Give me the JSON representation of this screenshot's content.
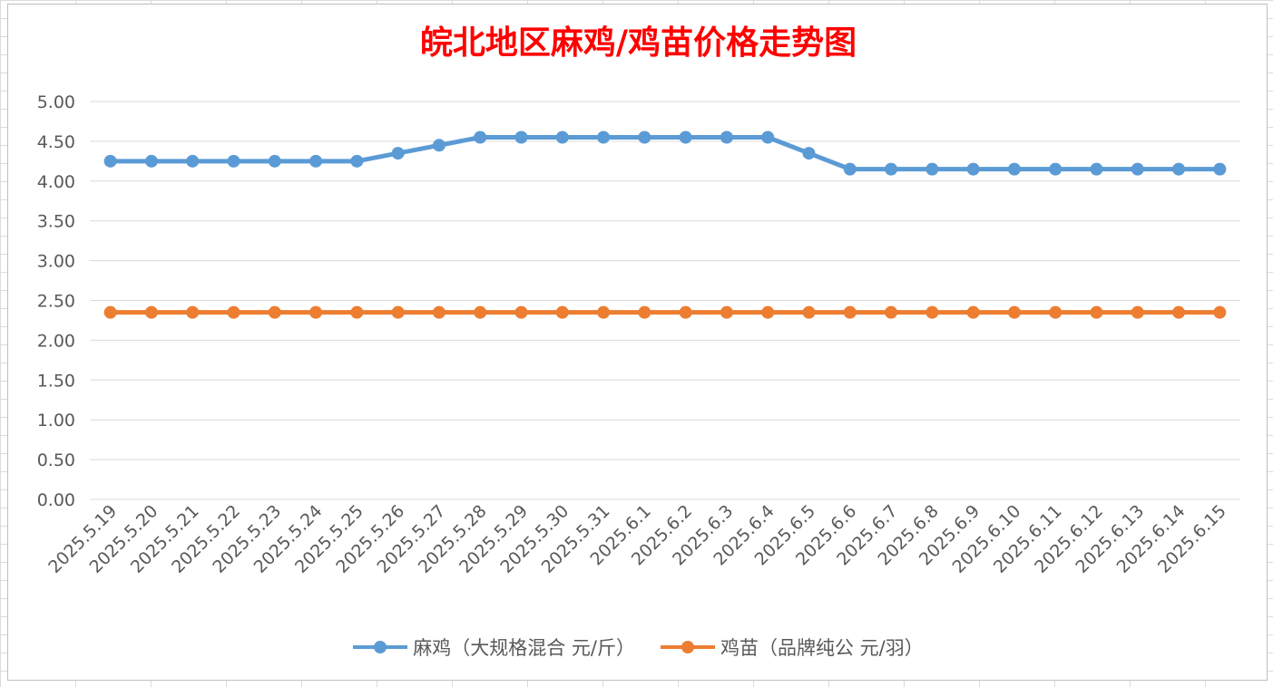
{
  "chart_data": {
    "type": "line",
    "title": "皖北地区麻鸡/鸡苗价格走势图",
    "xlabel": "",
    "ylabel": "",
    "ylim": [
      0,
      5
    ],
    "ystep": 0.5,
    "y_tick_labels": [
      "0.00",
      "0.50",
      "1.00",
      "1.50",
      "2.00",
      "2.50",
      "3.00",
      "3.50",
      "4.00",
      "4.50",
      "5.00"
    ],
    "grid": true,
    "legend_position": "bottom",
    "categories": [
      "2025.5.19",
      "2025.5.20",
      "2025.5.21",
      "2025.5.22",
      "2025.5.23",
      "2025.5.24",
      "2025.5.25",
      "2025.5.26",
      "2025.5.27",
      "2025.5.28",
      "2025.5.29",
      "2025.5.30",
      "2025.5.31",
      "2025.6.1",
      "2025.6.2",
      "2025.6.3",
      "2025.6.4",
      "2025.6.5",
      "2025.6.6",
      "2025.6.7",
      "2025.6.8",
      "2025.6.9",
      "2025.6.10",
      "2025.6.11",
      "2025.6.12",
      "2025.6.13",
      "2025.6.14",
      "2025.6.15"
    ],
    "series": [
      {
        "name": "麻鸡（大规格混合 元/斤）",
        "color": "#5b9bd5",
        "values": [
          4.25,
          4.25,
          4.25,
          4.25,
          4.25,
          4.25,
          4.25,
          4.35,
          4.45,
          4.55,
          4.55,
          4.55,
          4.55,
          4.55,
          4.55,
          4.55,
          4.55,
          4.35,
          4.15,
          4.15,
          4.15,
          4.15,
          4.15,
          4.15,
          4.15,
          4.15,
          4.15,
          4.15
        ]
      },
      {
        "name": "鸡苗（品牌纯公 元/羽）",
        "color": "#ed7d31",
        "values": [
          2.35,
          2.35,
          2.35,
          2.35,
          2.35,
          2.35,
          2.35,
          2.35,
          2.35,
          2.35,
          2.35,
          2.35,
          2.35,
          2.35,
          2.35,
          2.35,
          2.35,
          2.35,
          2.35,
          2.35,
          2.35,
          2.35,
          2.35,
          2.35,
          2.35,
          2.35,
          2.35,
          2.35
        ]
      }
    ],
    "title_color": "#ff0000",
    "gridline_color": "#d9d9d9",
    "axis_text_color": "#595959"
  }
}
